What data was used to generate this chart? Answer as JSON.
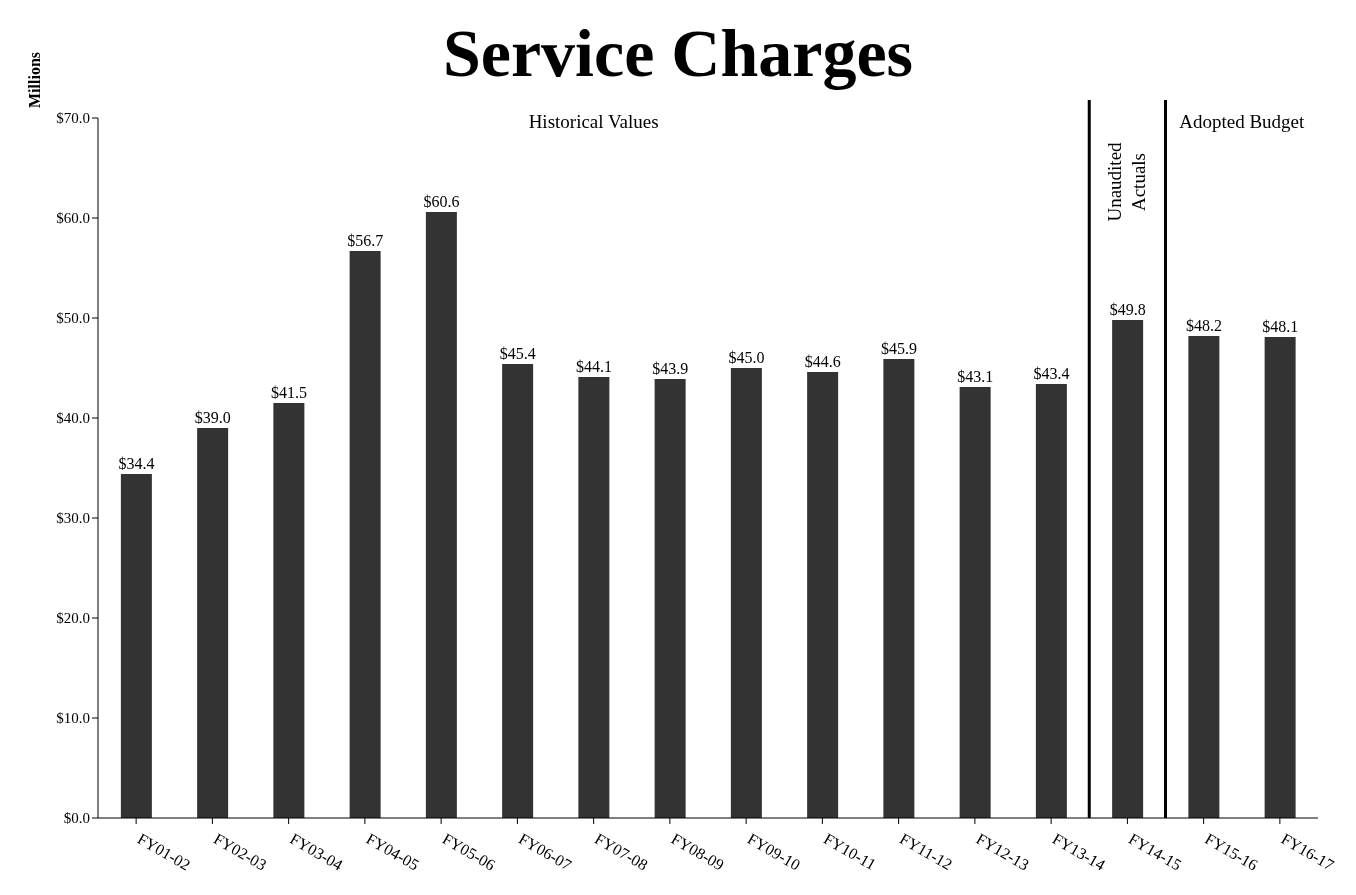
{
  "chart_data": {
    "type": "bar",
    "title": "Service Charges",
    "ylabel": "Millions",
    "categories": [
      "FY01-02",
      "FY02-03",
      "FY03-04",
      "FY04-05",
      "FY05-06",
      "FY06-07",
      "FY07-08",
      "FY08-09",
      "FY09-10",
      "FY10-11",
      "FY11-12",
      "FY12-13",
      "FY13-14",
      "FY14-15",
      "FY15-16",
      "FY16-17"
    ],
    "values": [
      34.4,
      39.0,
      41.5,
      56.7,
      60.6,
      45.4,
      44.1,
      43.9,
      45.0,
      44.6,
      45.9,
      43.1,
      43.4,
      49.8,
      48.2,
      48.1
    ],
    "value_labels": [
      "$34.4",
      "$39.0",
      "$41.5",
      "$56.7",
      "$60.6",
      "$45.4",
      "$44.1",
      "$43.9",
      "$45.0",
      "$44.6",
      "$45.9",
      "$43.1",
      "$43.4",
      "$49.8",
      "$48.2",
      "$48.1"
    ],
    "color": "#333333",
    "ylim": [
      0,
      70
    ],
    "yticks": [
      {
        "value": 0,
        "label": "$0.0"
      },
      {
        "value": 10,
        "label": "$10.0"
      },
      {
        "value": 20,
        "label": "$20.0"
      },
      {
        "value": 30,
        "label": "$30.0"
      },
      {
        "value": 40,
        "label": "$40.0"
      },
      {
        "value": 50,
        "label": "$50.0"
      },
      {
        "value": 60,
        "label": "$60.0"
      },
      {
        "value": 70,
        "label": "$70.0"
      }
    ],
    "grid": false,
    "legend": false,
    "annotations": [
      "Historical Values",
      "Unaudited Actuals",
      "Adopted Budget"
    ]
  }
}
